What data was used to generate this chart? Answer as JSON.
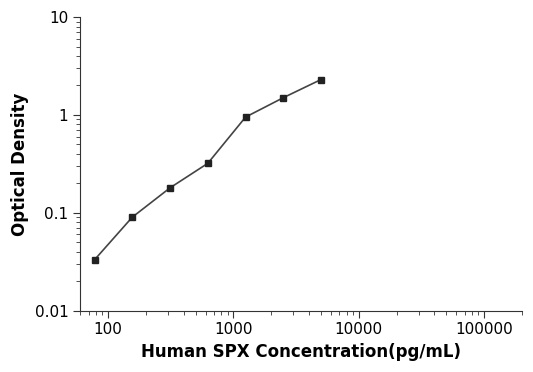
{
  "x": [
    78,
    156,
    313,
    625,
    1250,
    2500,
    5000
  ],
  "y": [
    0.033,
    0.09,
    0.18,
    0.32,
    0.95,
    1.5,
    2.3
  ],
  "xlabel": "Human SPX Concentration(pg/mL)",
  "ylabel": "Optical Density",
  "xlim": [
    60,
    200000
  ],
  "ylim": [
    0.01,
    10
  ],
  "marker": "s",
  "marker_color": "#222222",
  "line_color": "#444444",
  "marker_size": 5,
  "line_width": 1.2,
  "background_color": "#ffffff",
  "xlabel_fontsize": 12,
  "ylabel_fontsize": 12,
  "tick_fontsize": 11
}
